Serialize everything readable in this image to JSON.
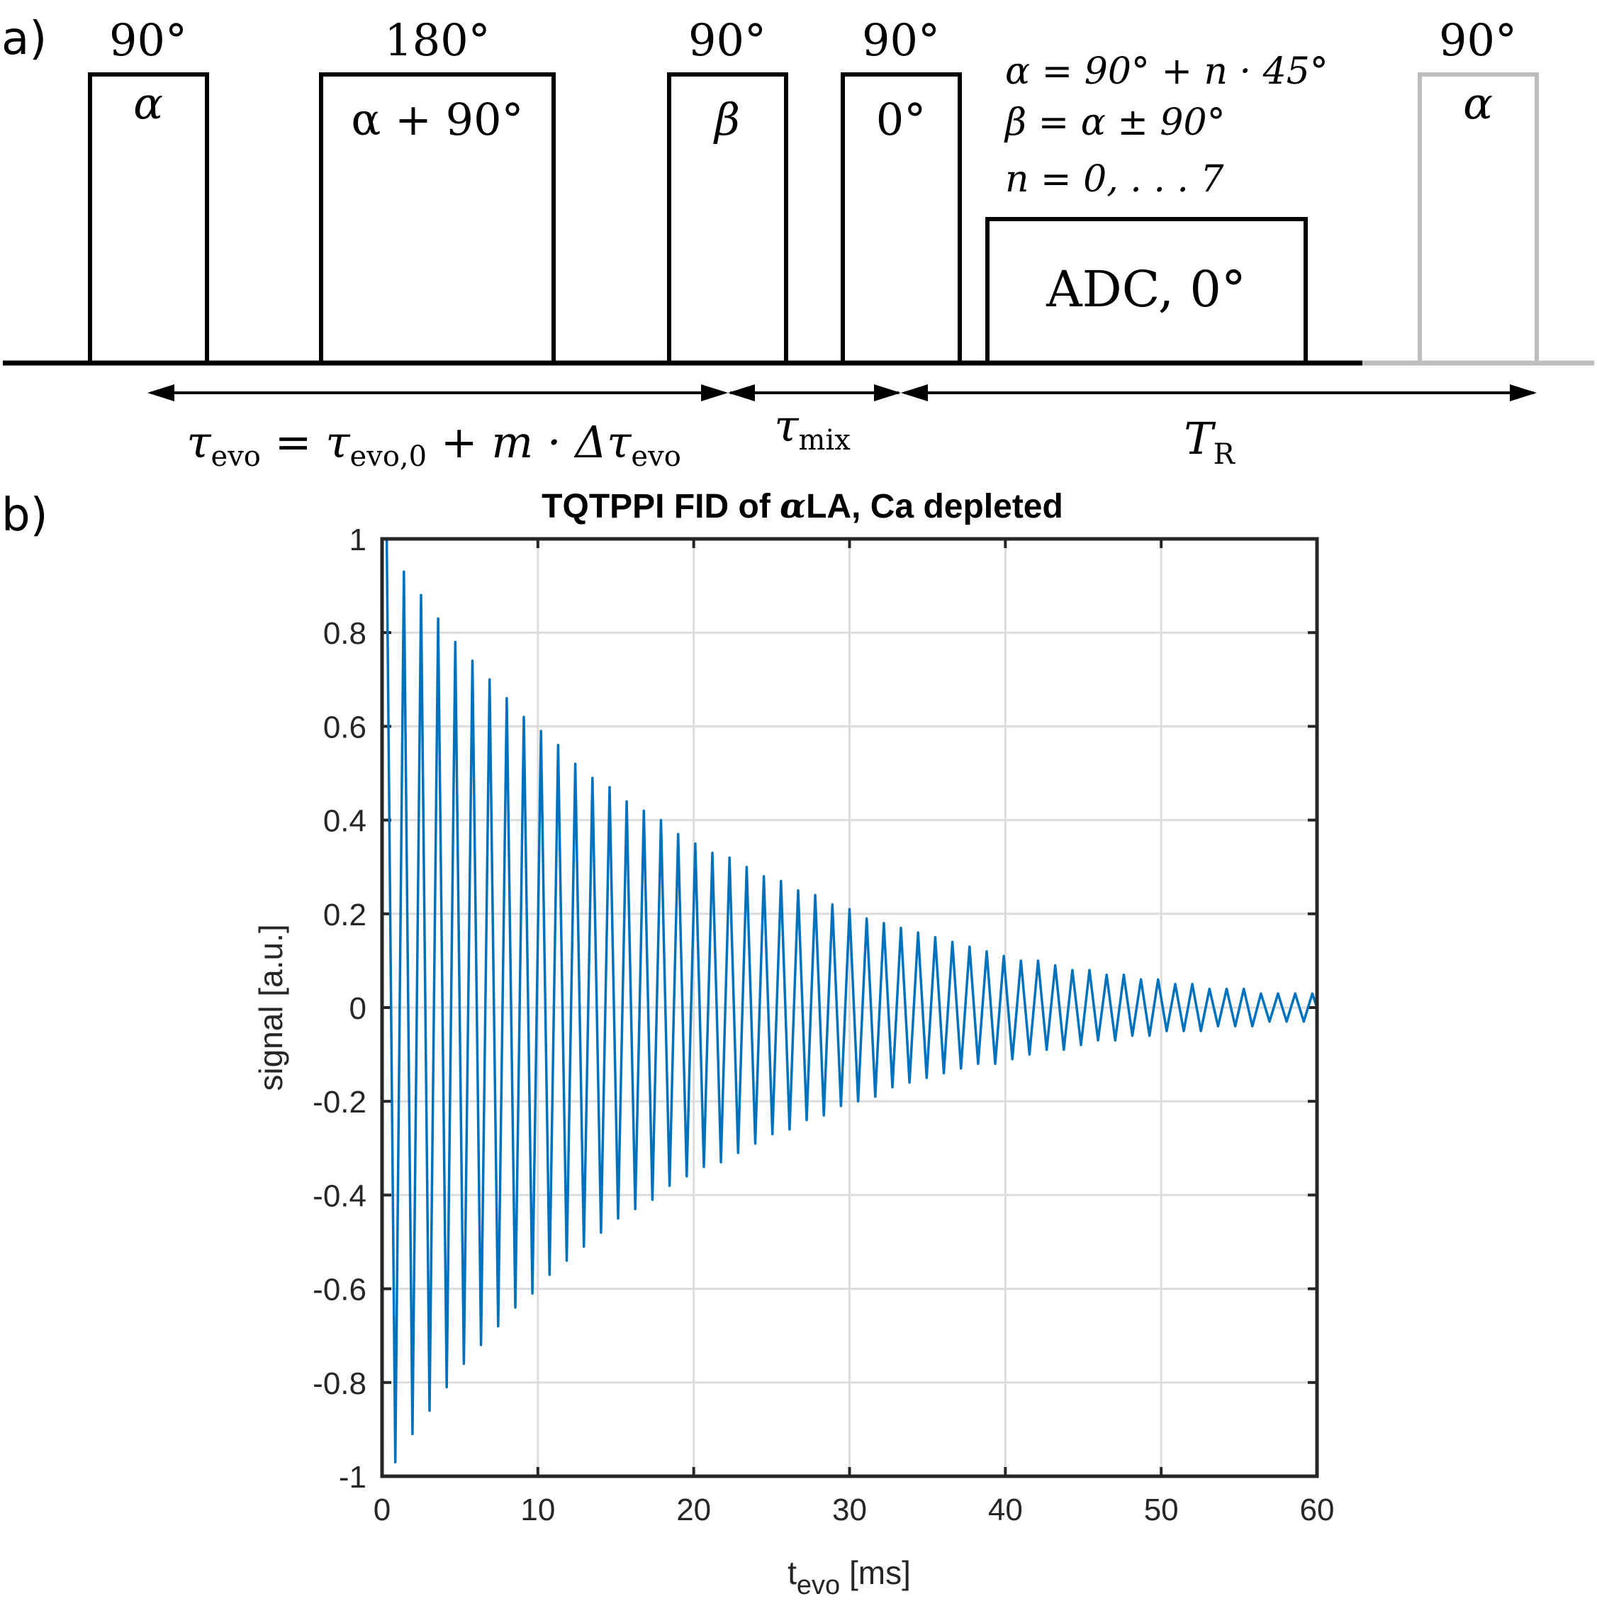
{
  "panel_a": {
    "panel_label": "a)",
    "pulses": [
      {
        "angle": "90°",
        "phase": "α"
      },
      {
        "angle": "180°",
        "phase": "α + 90°"
      },
      {
        "angle": "90°",
        "phase": "β"
      },
      {
        "angle": "90°",
        "phase": "0°"
      }
    ],
    "adc_label": "ADC, 0°",
    "repeat_pulse": {
      "angle": "90°",
      "phase": "α"
    },
    "equations": [
      "α = 90° + n · 45°",
      "β = α ± 90°",
      "n = 0, . . . 7"
    ],
    "intervals": {
      "evolution": {
        "symbol": "τ",
        "sub": "evo",
        "rest": " = τ",
        "sub2": "evo,0",
        "rest2": " + m · Δτ",
        "sub3": "evo"
      },
      "mixing": {
        "symbol": "τ",
        "sub": "mix"
      },
      "repetition": {
        "symbol": "T",
        "sub": "R"
      }
    },
    "colors": {
      "pulse": "#000000",
      "repeat": "#bdbdbd"
    }
  },
  "panel_b": {
    "panel_label": "b)",
    "title_prefix": "TQTPPI FID of ",
    "title_symbol": "α",
    "title_suffix": "LA, Ca depleted",
    "ylabel": "signal [a.u.]",
    "xlabel_main": "t",
    "xlabel_sub": "evo",
    "xlabel_unit": " [ms]"
  },
  "chart_data": {
    "type": "line",
    "title": "TQTPPI FID of αLA, Ca depleted",
    "xlabel": "t_evo [ms]",
    "ylabel": "signal [a.u.]",
    "xlim": [
      0,
      60
    ],
    "ylim": [
      -1,
      1
    ],
    "xticks": [
      0,
      10,
      20,
      30,
      40,
      50,
      60
    ],
    "yticks": [
      -1,
      -0.8,
      -0.6,
      -0.4,
      -0.2,
      0,
      0.2,
      0.4,
      0.6,
      0.8,
      1
    ],
    "xtick_labels": [
      "0",
      "10",
      "20",
      "30",
      "40",
      "50",
      "60"
    ],
    "ytick_labels": [
      "-1",
      "-0.8",
      "-0.6",
      "-0.4",
      "-0.2",
      "0",
      "0.2",
      "0.4",
      "0.6",
      "0.8",
      "1"
    ],
    "grid": true,
    "series_color": "#0072bd",
    "series": [
      {
        "x": [
          0.3,
          0.85,
          1.4,
          1.95,
          2.5,
          3.05,
          3.6,
          4.15,
          4.7,
          5.25,
          5.8,
          6.35,
          6.9,
          7.45,
          8.0,
          8.55,
          9.1,
          9.65,
          10.2,
          10.75,
          11.3,
          11.85,
          12.4,
          12.95,
          13.5,
          14.05,
          14.6,
          15.15,
          15.7,
          16.25,
          16.8,
          17.35,
          17.9,
          18.45,
          19.0,
          19.55,
          20.1,
          20.65,
          21.2,
          21.75,
          22.3,
          22.85,
          23.4,
          23.95,
          24.5,
          25.05,
          25.6,
          26.15,
          26.7,
          27.25,
          27.8,
          28.35,
          28.9,
          29.45,
          30.0,
          30.55,
          31.1,
          31.65,
          32.2,
          32.75,
          33.3,
          33.85,
          34.4,
          34.95,
          35.5,
          36.05,
          36.6,
          37.15,
          37.7,
          38.25,
          38.8,
          39.35,
          39.9,
          40.45,
          41.0,
          41.55,
          42.1,
          42.65,
          43.2,
          43.75,
          44.3,
          44.85,
          45.4,
          45.95,
          46.5,
          47.05,
          47.6,
          48.15,
          48.7,
          49.25,
          49.8,
          50.35,
          50.9,
          51.45,
          52.0,
          52.55,
          53.1,
          53.65,
          54.2,
          54.75,
          55.3,
          55.85,
          56.4,
          56.95,
          57.5,
          58.05,
          58.6,
          59.15,
          59.7,
          60.0
        ],
        "y": [
          1.0,
          -0.97,
          0.93,
          -0.91,
          0.88,
          -0.86,
          0.83,
          -0.81,
          0.78,
          -0.76,
          0.74,
          -0.72,
          0.7,
          -0.68,
          0.66,
          -0.64,
          0.62,
          -0.61,
          0.59,
          -0.57,
          0.56,
          -0.54,
          0.52,
          -0.51,
          0.49,
          -0.48,
          0.47,
          -0.45,
          0.44,
          -0.43,
          0.42,
          -0.41,
          0.4,
          -0.38,
          0.37,
          -0.36,
          0.35,
          -0.34,
          0.33,
          -0.33,
          0.32,
          -0.31,
          0.3,
          -0.29,
          0.28,
          -0.27,
          0.27,
          -0.26,
          0.25,
          -0.24,
          0.24,
          -0.23,
          0.22,
          -0.21,
          0.21,
          -0.2,
          0.19,
          -0.19,
          0.18,
          -0.17,
          0.17,
          -0.16,
          0.16,
          -0.15,
          0.15,
          -0.14,
          0.14,
          -0.13,
          0.13,
          -0.12,
          0.12,
          -0.12,
          0.11,
          -0.11,
          0.1,
          -0.1,
          0.1,
          -0.09,
          0.09,
          -0.09,
          0.08,
          -0.08,
          0.08,
          -0.07,
          0.07,
          -0.07,
          0.07,
          -0.06,
          0.06,
          -0.06,
          0.06,
          -0.05,
          0.05,
          -0.05,
          0.05,
          -0.05,
          0.04,
          -0.04,
          0.04,
          -0.04,
          0.04,
          -0.04,
          0.03,
          -0.03,
          0.03,
          -0.03,
          0.03,
          -0.03,
          0.03,
          0.0
        ]
      }
    ]
  }
}
